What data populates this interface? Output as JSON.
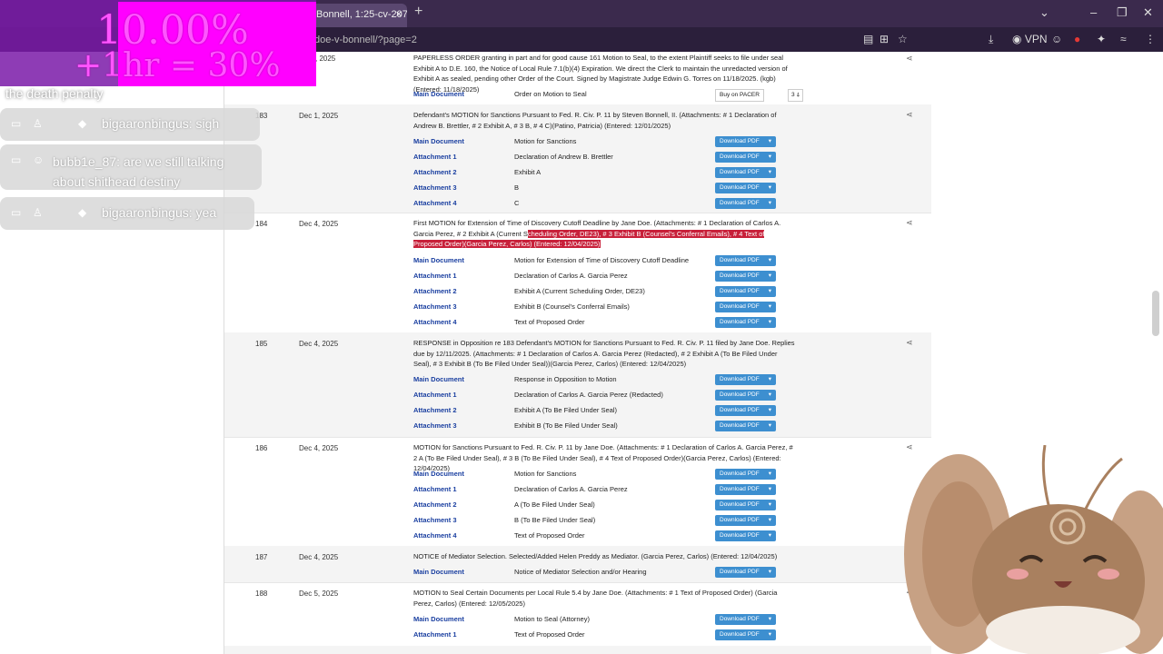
{
  "browser": {
    "tab_title": "Bonnell, 1:25-cv-20757 -",
    "tab_close": "×",
    "new_tab": "+",
    "url": "doe-v-bonnell/?page=2",
    "vpn_label": "VPN",
    "window_controls": [
      "⌄",
      "–",
      "❐",
      "✕"
    ]
  },
  "docket": {
    "top_entry": {
      "date": ", 2025",
      "text": "PAPERLESS ORDER granting in part and for good cause 161 Motion to Seal, to the extent Plaintiff seeks to file under seal Exhibit A to D.E. 160, the Notice of Local Rule 7.1(b)(4) Expiration. We direct the Clerk to maintain the unredacted version of Exhibit A as sealed, pending other Order of the Court. Signed by Magistrate Judge Edwin G. Torres on 11/18/2025. (kgb) (Entered: 11/18/2025)",
      "doc_label": "Main Document",
      "doc_title": "Order on Motion to Seal",
      "pacer_label": "Buy on PACER",
      "pacer_count": "3 ⍋"
    },
    "entries": [
      {
        "num": "183",
        "date": "Dec 1, 2025",
        "text": "Defendant's MOTION for Sanctions Pursuant to Fed. R. Civ. P. 11 by Steven Bonnell, II. (Attachments: # 1 Declaration of Andrew B. Brettler, # 2 Exhibit A, # 3 B, # 4 C)(Patino, Patricia) (Entered: 12/01/2025)",
        "docs": [
          {
            "label": "Main Document",
            "title": "Motion for Sanctions"
          },
          {
            "label": "Attachment 1",
            "title": "Declaration of Andrew B. Brettler"
          },
          {
            "label": "Attachment 2",
            "title": "Exhibit A"
          },
          {
            "label": "Attachment 3",
            "title": "B"
          },
          {
            "label": "Attachment 4",
            "title": "C"
          }
        ]
      },
      {
        "num": "184",
        "date": "Dec 4, 2025",
        "text_plain": "First MOTION for Extension of Time of Discovery Cutoff Deadline by Jane Doe. (Attachments: # 1 Declaration of Carlos A. Garcia Perez, # 2 Exhibit A (Current S",
        "text_highlight": "cheduling Order, DE23), # 3 Exhibit B (Counsel's Conferral Emails), # 4 Text of Proposed Order)(Garcia Perez, Carlos) (Entered: 12/04/2025)",
        "docs": [
          {
            "label": "Main Document",
            "title": "Motion for Extension of Time of Discovery Cutoff Deadline"
          },
          {
            "label": "Attachment 1",
            "title": "Declaration of Carlos A. Garcia Perez"
          },
          {
            "label": "Attachment 2",
            "title": "Exhibit A (Current Scheduling Order, DE23)"
          },
          {
            "label": "Attachment 3",
            "title": "Exhibit B (Counsel's Conferral Emails)"
          },
          {
            "label": "Attachment 4",
            "title": "Text of Proposed Order"
          }
        ]
      },
      {
        "num": "185",
        "date": "Dec 4, 2025",
        "text": "RESPONSE in Opposition re 183 Defendant's MOTION for Sanctions Pursuant to Fed. R. Civ. P. 11 filed by Jane Doe. Replies due by 12/11/2025. (Attachments: # 1 Declaration of Carlos A. Garcia Perez (Redacted), # 2 Exhibit A (To Be Filed Under Seal), # 3 Exhibit B (To Be Filed Under Seal))(Garcia Perez, Carlos) (Entered: 12/04/2025)",
        "docs": [
          {
            "label": "Main Document",
            "title": "Response in Opposition to Motion"
          },
          {
            "label": "Attachment 1",
            "title": "Declaration of Carlos A. Garcia Perez (Redacted)"
          },
          {
            "label": "Attachment 2",
            "title": "Exhibit A (To Be Filed Under Seal)"
          },
          {
            "label": "Attachment 3",
            "title": "Exhibit B (To Be Filed Under Seal)"
          }
        ]
      },
      {
        "num": "186",
        "date": "Dec 4, 2025",
        "text": "MOTION for Sanctions Pursuant to Fed. R. Civ. P. 11 by Jane Doe. (Attachments: # 1 Declaration of Carlos A. Garcia Perez, # 2 A (To Be Filed Under Seal), # 3 B (To Be Filed Under Seal), # 4 Text of Proposed Order)(Garcia Perez, Carlos) (Entered: 12/04/2025)",
        "docs": [
          {
            "label": "Main Document",
            "title": "Motion for Sanctions"
          },
          {
            "label": "Attachment 1",
            "title": "Declaration of Carlos A. Garcia Perez"
          },
          {
            "label": "Attachment 2",
            "title": "A (To Be Filed Under Seal)"
          },
          {
            "label": "Attachment 3",
            "title": "B (To Be Filed Under Seal)"
          },
          {
            "label": "Attachment 4",
            "title": "Text of Proposed Order"
          }
        ]
      },
      {
        "num": "187",
        "date": "Dec 4, 2025",
        "text": "NOTICE of Mediator Selection. Selected/Added Helen Preddy as Mediator. (Garcia Perez, Carlos) (Entered: 12/04/2025)",
        "docs": [
          {
            "label": "Main Document",
            "title": "Notice of Mediator Selection and/or Hearing"
          }
        ]
      },
      {
        "num": "188",
        "date": "Dec 5, 2025",
        "text": "MOTION to Seal Certain Documents per Local Rule 5.4 by Jane Doe. (Attachments: # 1 Text of Proposed Order) (Garcia Perez, Carlos) (Entered: 12/05/2025)",
        "docs": [
          {
            "label": "Main Document",
            "title": "Motion to Seal (Attorney)"
          },
          {
            "label": "Attachment 1",
            "title": "Text of Proposed Order"
          }
        ]
      }
    ],
    "download_label": "Download PDF",
    "download_caret": "▾",
    "share_glyph": "⋖"
  },
  "overlay": {
    "line1": "10.00%",
    "line2": "+1hr = 30%",
    "chat_first": "the death penalty",
    "messages": [
      {
        "user": "bigaaronbingus:",
        "text": "sigh"
      },
      {
        "user": "bubb1e_87:",
        "text": "are we still talking about shithead destiny"
      },
      {
        "user": "bigaaronbingus:",
        "text": "yea"
      }
    ]
  },
  "colors": {
    "link": "#1a3fa0",
    "button": "#3d8fd0",
    "highlight": "#c8203a",
    "overlay_pink": "#ff00ff"
  }
}
